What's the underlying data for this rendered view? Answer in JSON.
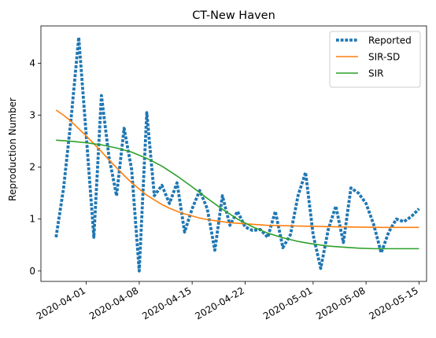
{
  "chart_data": {
    "type": "line",
    "title": "CT-New Haven",
    "xlabel": "",
    "ylabel": "Reproduction Number",
    "x_ticks": [
      "2020-04-01",
      "2020-04-08",
      "2020-04-15",
      "2020-04-22",
      "2020-05-01",
      "2020-05-08",
      "2020-05-15"
    ],
    "y_ticks": [
      0,
      1,
      2,
      3,
      4
    ],
    "xlim": [
      "2020-03-26",
      "2020-05-16"
    ],
    "ylim": [
      -0.2,
      4.72
    ],
    "legend": {
      "position": "top-right",
      "entries": [
        "Reported",
        "SIR-SD",
        "SIR"
      ]
    },
    "grid": false,
    "series": [
      {
        "name": "Reported",
        "style": "dotted",
        "color": "#1f77b4",
        "points": [
          [
            "2020-03-28",
            0.65
          ],
          [
            "2020-03-29",
            1.6
          ],
          [
            "2020-03-30",
            2.95
          ],
          [
            "2020-03-31",
            4.5
          ],
          [
            "2020-04-01",
            2.6
          ],
          [
            "2020-04-02",
            0.65
          ],
          [
            "2020-04-03",
            3.38
          ],
          [
            "2020-04-04",
            2.2
          ],
          [
            "2020-04-05",
            1.45
          ],
          [
            "2020-04-06",
            2.75
          ],
          [
            "2020-04-07",
            1.95
          ],
          [
            "2020-04-08",
            0.0
          ],
          [
            "2020-04-09",
            3.05
          ],
          [
            "2020-04-10",
            1.45
          ],
          [
            "2020-04-11",
            1.65
          ],
          [
            "2020-04-12",
            1.3
          ],
          [
            "2020-04-13",
            1.7
          ],
          [
            "2020-04-14",
            0.75
          ],
          [
            "2020-04-15",
            1.2
          ],
          [
            "2020-04-16",
            1.55
          ],
          [
            "2020-04-17",
            1.2
          ],
          [
            "2020-04-18",
            0.4
          ],
          [
            "2020-04-19",
            1.45
          ],
          [
            "2020-04-20",
            0.88
          ],
          [
            "2020-04-21",
            1.15
          ],
          [
            "2020-04-22",
            0.85
          ],
          [
            "2020-04-23",
            0.78
          ],
          [
            "2020-04-24",
            0.8
          ],
          [
            "2020-04-25",
            0.65
          ],
          [
            "2020-04-26",
            1.15
          ],
          [
            "2020-04-27",
            0.45
          ],
          [
            "2020-04-28",
            0.7
          ],
          [
            "2020-04-29",
            1.45
          ],
          [
            "2020-04-30",
            1.9
          ],
          [
            "2020-05-01",
            0.7
          ],
          [
            "2020-05-02",
            0.05
          ],
          [
            "2020-05-03",
            0.8
          ],
          [
            "2020-05-04",
            1.25
          ],
          [
            "2020-05-05",
            0.55
          ],
          [
            "2020-05-06",
            1.6
          ],
          [
            "2020-05-07",
            1.5
          ],
          [
            "2020-05-08",
            1.3
          ],
          [
            "2020-05-09",
            0.9
          ],
          [
            "2020-05-10",
            0.35
          ],
          [
            "2020-05-11",
            0.75
          ],
          [
            "2020-05-12",
            1.0
          ],
          [
            "2020-05-13",
            0.95
          ],
          [
            "2020-05-14",
            1.05
          ],
          [
            "2020-05-15",
            1.2
          ]
        ]
      },
      {
        "name": "SIR-SD",
        "style": "solid",
        "color": "#ff7f0e",
        "points": [
          [
            "2020-03-28",
            3.1
          ],
          [
            "2020-03-29",
            3.0
          ],
          [
            "2020-03-30",
            2.88
          ],
          [
            "2020-03-31",
            2.74
          ],
          [
            "2020-04-01",
            2.6
          ],
          [
            "2020-04-02",
            2.45
          ],
          [
            "2020-04-03",
            2.3
          ],
          [
            "2020-04-04",
            2.14
          ],
          [
            "2020-04-05",
            1.99
          ],
          [
            "2020-04-06",
            1.84
          ],
          [
            "2020-04-07",
            1.7
          ],
          [
            "2020-04-08",
            1.58
          ],
          [
            "2020-04-09",
            1.46
          ],
          [
            "2020-04-10",
            1.37
          ],
          [
            "2020-04-11",
            1.28
          ],
          [
            "2020-04-12",
            1.21
          ],
          [
            "2020-04-13",
            1.15
          ],
          [
            "2020-04-14",
            1.1
          ],
          [
            "2020-04-15",
            1.06
          ],
          [
            "2020-04-16",
            1.02
          ],
          [
            "2020-04-17",
            0.99
          ],
          [
            "2020-04-18",
            0.97
          ],
          [
            "2020-04-19",
            0.95
          ],
          [
            "2020-04-20",
            0.93
          ],
          [
            "2020-04-22",
            0.91
          ],
          [
            "2020-04-25",
            0.88
          ],
          [
            "2020-04-28",
            0.87
          ],
          [
            "2020-05-01",
            0.86
          ],
          [
            "2020-05-05",
            0.85
          ],
          [
            "2020-05-10",
            0.84
          ],
          [
            "2020-05-15",
            0.84
          ]
        ]
      },
      {
        "name": "SIR",
        "style": "solid",
        "color": "#2ca02c",
        "points": [
          [
            "2020-03-28",
            2.52
          ],
          [
            "2020-03-30",
            2.5
          ],
          [
            "2020-04-01",
            2.47
          ],
          [
            "2020-04-03",
            2.43
          ],
          [
            "2020-04-05",
            2.37
          ],
          [
            "2020-04-07",
            2.29
          ],
          [
            "2020-04-09",
            2.17
          ],
          [
            "2020-04-11",
            2.02
          ],
          [
            "2020-04-13",
            1.83
          ],
          [
            "2020-04-15",
            1.62
          ],
          [
            "2020-04-17",
            1.4
          ],
          [
            "2020-04-19",
            1.19
          ],
          [
            "2020-04-21",
            1.0
          ],
          [
            "2020-04-23",
            0.85
          ],
          [
            "2020-04-25",
            0.73
          ],
          [
            "2020-04-27",
            0.64
          ],
          [
            "2020-04-29",
            0.57
          ],
          [
            "2020-05-01",
            0.52
          ],
          [
            "2020-05-03",
            0.48
          ],
          [
            "2020-05-05",
            0.46
          ],
          [
            "2020-05-07",
            0.44
          ],
          [
            "2020-05-09",
            0.43
          ],
          [
            "2020-05-11",
            0.43
          ],
          [
            "2020-05-15",
            0.43
          ]
        ]
      }
    ]
  }
}
